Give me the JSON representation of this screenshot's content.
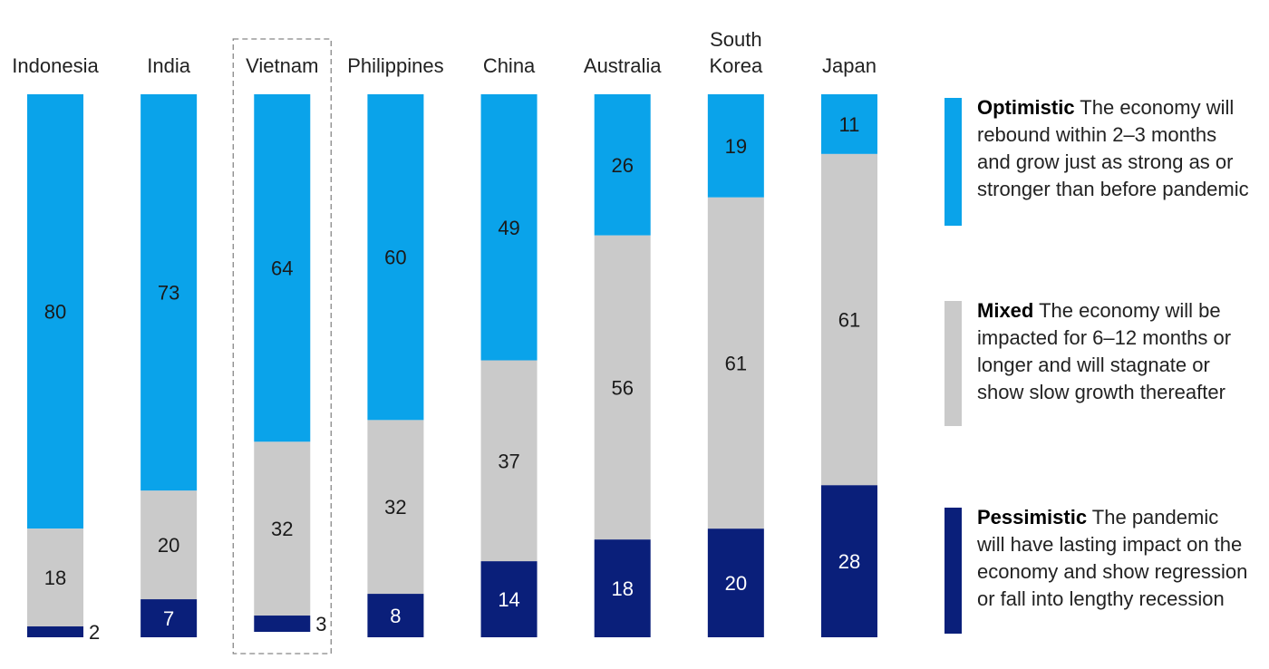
{
  "colors": {
    "optimistic": "#0aa3ea",
    "mixed": "#cacaca",
    "pessimistic": "#0a1f7a",
    "label_dark": "#1a1a1a",
    "label_light": "#ffffff"
  },
  "chart_data": {
    "type": "bar",
    "stacked": true,
    "orientation": "vertical",
    "categories": [
      [
        "Indonesia"
      ],
      [
        "India"
      ],
      [
        "Vietnam"
      ],
      [
        "Philippines"
      ],
      [
        "China"
      ],
      [
        "Australia"
      ],
      [
        "South",
        "Korea"
      ],
      [
        "Japan"
      ]
    ],
    "highlighted_category_index": 2,
    "series": [
      {
        "key": "optimistic",
        "values": [
          80,
          73,
          64,
          60,
          49,
          26,
          19,
          11
        ]
      },
      {
        "key": "mixed",
        "values": [
          18,
          20,
          32,
          32,
          37,
          56,
          61,
          61
        ]
      },
      {
        "key": "pessimistic",
        "values": [
          2,
          7,
          3,
          8,
          14,
          18,
          20,
          28
        ]
      }
    ],
    "ylim": [
      0,
      100
    ],
    "grid": false,
    "legend_placement": "right"
  },
  "legend": [
    {
      "key": "optimistic",
      "bold": "Optimistic",
      "text": " The economy will rebound within 2–3 months and grow just as strong as or stronger than before pandemic"
    },
    {
      "key": "mixed",
      "bold": "Mixed",
      "text": " The economy will be impacted for 6–12 months or longer and will stagnate or show slow growth thereafter"
    },
    {
      "key": "pessimistic",
      "bold": "Pessimistic",
      "text": " The pandemic will have lasting impact on the economy and show regression or fall into lengthy recession"
    }
  ]
}
